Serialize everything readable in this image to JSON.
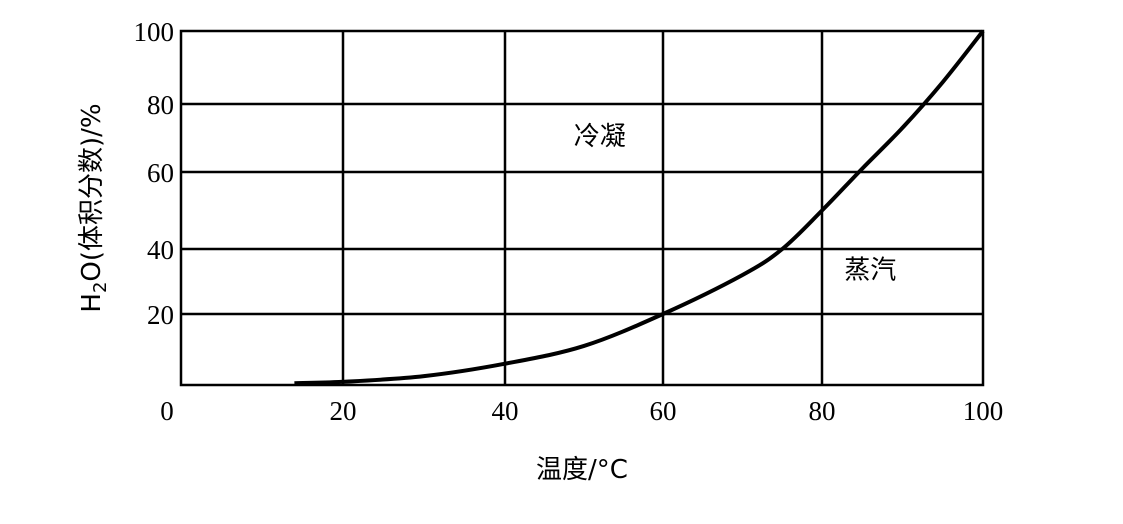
{
  "chart_data": {
    "type": "line",
    "title": "",
    "xlabel": "温度/°C",
    "ylabel": "H₂O(体积分数)/%",
    "ylabel_parts": {
      "main": "H",
      "sub": "2",
      "rest": "O(体积分数)/%"
    },
    "xlim": [
      0,
      100
    ],
    "ylim": [
      0,
      100
    ],
    "x_ticks": [
      "0",
      "20",
      "40",
      "60",
      "80",
      "100"
    ],
    "y_ticks": [
      "20",
      "40",
      "60",
      "80",
      "100"
    ],
    "grid": true,
    "series": [
      {
        "x": [
          14,
          20,
          30,
          40,
          50,
          60,
          70,
          75,
          80,
          85,
          90,
          95,
          100
        ],
        "y": [
          0.5,
          0.9,
          2.5,
          6,
          11,
          20,
          32,
          40,
          50,
          61,
          73,
          86,
          100
        ],
        "color": "#000000"
      }
    ],
    "annotations": [
      {
        "text": "冷凝",
        "x": 52,
        "y": 68
      },
      {
        "text": "蒸汽",
        "x": 86,
        "y": 31
      }
    ]
  }
}
